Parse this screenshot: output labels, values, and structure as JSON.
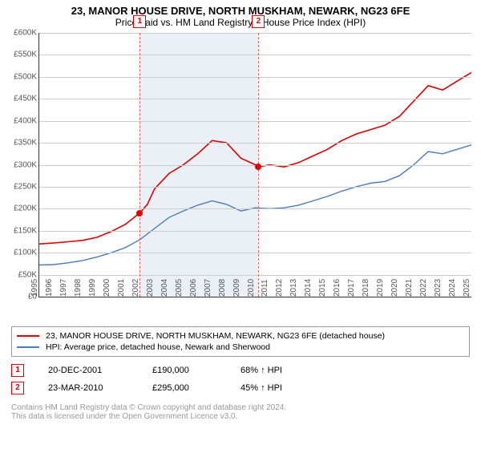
{
  "title": "23, MANOR HOUSE DRIVE, NORTH MUSKHAM, NEWARK, NG23 6FE",
  "subtitle": "Price paid vs. HM Land Registry's House Price Index (HPI)",
  "chart": {
    "type": "line",
    "background_color": "#ffffff",
    "grid_color": "#cccccc",
    "x_start_year": 1995,
    "x_end_year": 2025,
    "ylim": [
      0,
      600000
    ],
    "ytick_step": 50000,
    "ytick_labels": [
      "£0",
      "£50K",
      "£100K",
      "£150K",
      "£200K",
      "£250K",
      "£300K",
      "£350K",
      "£400K",
      "£450K",
      "£500K",
      "£550K",
      "£600K"
    ],
    "xtick_years": [
      1995,
      1996,
      1997,
      1998,
      1999,
      2000,
      2001,
      2002,
      2003,
      2004,
      2005,
      2006,
      2007,
      2008,
      2009,
      2010,
      2011,
      2012,
      2013,
      2014,
      2015,
      2016,
      2017,
      2018,
      2019,
      2020,
      2021,
      2022,
      2023,
      2024,
      2025
    ],
    "label_fontsize": 10,
    "band": {
      "start_year": 2001.97,
      "end_year": 2010.22,
      "color": "#eaf0f6"
    },
    "vlines": [
      {
        "year": 2001.97,
        "color": "#d66",
        "marker": "1"
      },
      {
        "year": 2010.22,
        "color": "#d66",
        "marker": "2"
      }
    ],
    "series": [
      {
        "name": "price_paid",
        "color": "#dd0000",
        "width": 1.6,
        "points": [
          [
            1995,
            120000
          ],
          [
            1996,
            122000
          ],
          [
            1997,
            125000
          ],
          [
            1998,
            128000
          ],
          [
            1999,
            135000
          ],
          [
            2000,
            148000
          ],
          [
            2001,
            165000
          ],
          [
            2001.97,
            190000
          ],
          [
            2002.5,
            210000
          ],
          [
            2003,
            245000
          ],
          [
            2004,
            280000
          ],
          [
            2005,
            300000
          ],
          [
            2006,
            325000
          ],
          [
            2007,
            355000
          ],
          [
            2008,
            350000
          ],
          [
            2009,
            315000
          ],
          [
            2010,
            300000
          ],
          [
            2010.22,
            295000
          ],
          [
            2011,
            300000
          ],
          [
            2012,
            295000
          ],
          [
            2013,
            305000
          ],
          [
            2014,
            320000
          ],
          [
            2015,
            335000
          ],
          [
            2016,
            355000
          ],
          [
            2017,
            370000
          ],
          [
            2018,
            380000
          ],
          [
            2019,
            390000
          ],
          [
            2020,
            410000
          ],
          [
            2021,
            445000
          ],
          [
            2022,
            480000
          ],
          [
            2023,
            470000
          ],
          [
            2024,
            490000
          ],
          [
            2025,
            510000
          ]
        ]
      },
      {
        "name": "hpi",
        "color": "#4a7abf",
        "width": 1.4,
        "points": [
          [
            1995,
            72000
          ],
          [
            1996,
            73000
          ],
          [
            1997,
            77000
          ],
          [
            1998,
            82000
          ],
          [
            1999,
            90000
          ],
          [
            2000,
            100000
          ],
          [
            2001,
            112000
          ],
          [
            2002,
            130000
          ],
          [
            2003,
            155000
          ],
          [
            2004,
            180000
          ],
          [
            2005,
            195000
          ],
          [
            2006,
            208000
          ],
          [
            2007,
            218000
          ],
          [
            2008,
            210000
          ],
          [
            2009,
            195000
          ],
          [
            2010,
            202000
          ],
          [
            2011,
            200000
          ],
          [
            2012,
            202000
          ],
          [
            2013,
            208000
          ],
          [
            2014,
            218000
          ],
          [
            2015,
            228000
          ],
          [
            2016,
            240000
          ],
          [
            2017,
            250000
          ],
          [
            2018,
            258000
          ],
          [
            2019,
            262000
          ],
          [
            2020,
            275000
          ],
          [
            2021,
            300000
          ],
          [
            2022,
            330000
          ],
          [
            2023,
            325000
          ],
          [
            2024,
            335000
          ],
          [
            2025,
            345000
          ]
        ]
      }
    ],
    "dots": [
      {
        "year": 2001.97,
        "value": 190000,
        "color": "#dd0000"
      },
      {
        "year": 2010.22,
        "value": 295000,
        "color": "#dd0000"
      }
    ]
  },
  "legend": {
    "items": [
      {
        "color": "#dd0000",
        "label": "23, MANOR HOUSE DRIVE, NORTH MUSKHAM, NEWARK, NG23 6FE (detached house)"
      },
      {
        "color": "#4a7abf",
        "label": "HPI: Average price, detached house, Newark and Sherwood"
      }
    ]
  },
  "events": [
    {
      "marker": "1",
      "date": "20-DEC-2001",
      "price": "£190,000",
      "delta": "68% ↑ HPI"
    },
    {
      "marker": "2",
      "date": "23-MAR-2010",
      "price": "£295,000",
      "delta": "45% ↑ HPI"
    }
  ],
  "footer": {
    "line1": "Contains HM Land Registry data © Crown copyright and database right 2024.",
    "line2": "This data is licensed under the Open Government Licence v3.0."
  }
}
